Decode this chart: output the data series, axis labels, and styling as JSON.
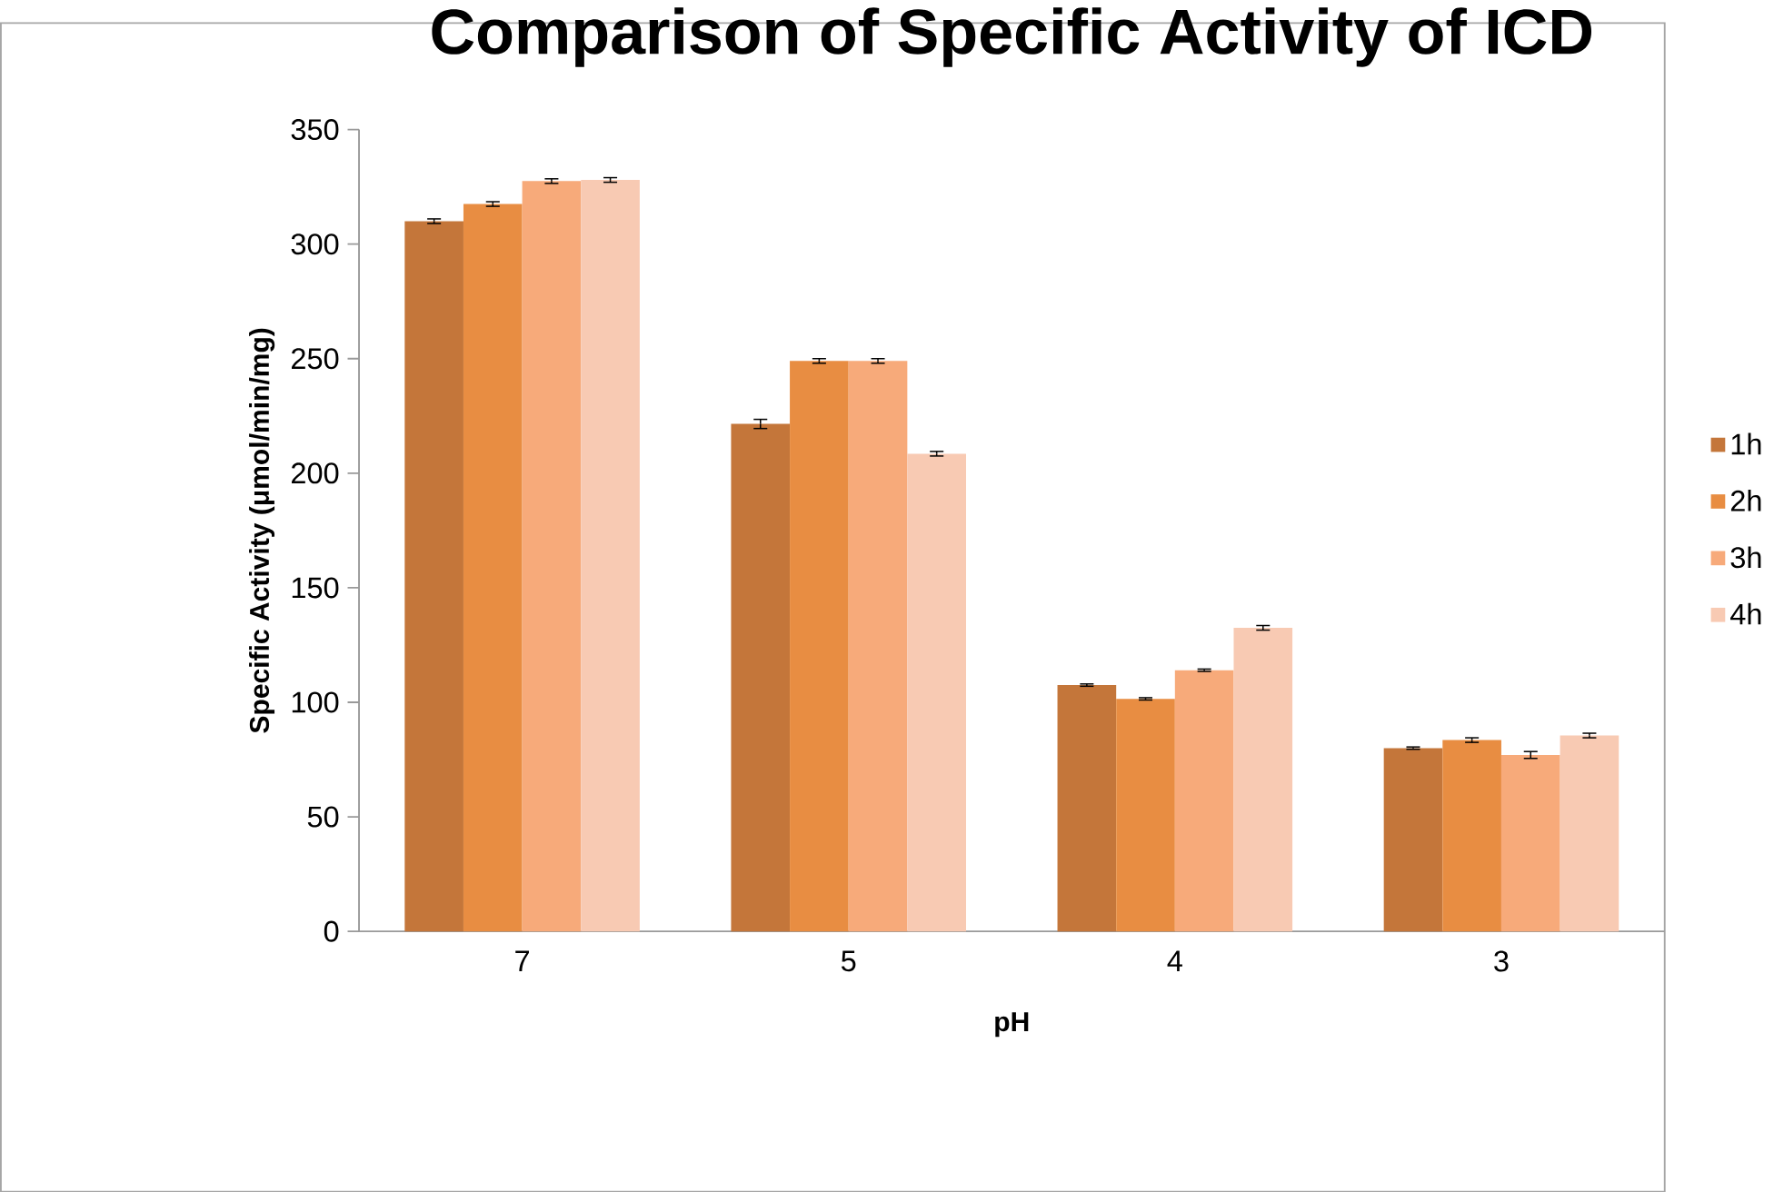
{
  "chart_data": {
    "type": "bar",
    "title": "Comparison of Specific Activity of ICD",
    "xlabel": "pH",
    "ylabel": "Specific Activity (μmol/min/mg)",
    "categories": [
      "7",
      "5",
      "4",
      "3"
    ],
    "series": [
      {
        "name": "1h",
        "color": "#c4763a",
        "values": [
          310,
          221.5,
          107.5,
          80
        ],
        "errors": [
          1,
          2,
          0.5,
          0.5
        ]
      },
      {
        "name": "2h",
        "color": "#e88d42",
        "values": [
          317.5,
          249,
          101.5,
          83.5
        ],
        "errors": [
          1,
          1,
          0.5,
          1
        ]
      },
      {
        "name": "3h",
        "color": "#f7aa7a",
        "values": [
          327.5,
          249,
          114,
          77
        ],
        "errors": [
          1,
          1,
          0.5,
          1.5
        ]
      },
      {
        "name": "4h",
        "color": "#f8cab3",
        "values": [
          328,
          208.5,
          132.5,
          85.5
        ],
        "errors": [
          1,
          1,
          1,
          1
        ]
      }
    ],
    "ylim": [
      0,
      350
    ],
    "yticks": [
      0,
      50,
      100,
      150,
      200,
      250,
      300,
      350
    ],
    "grid": false,
    "legend": "right"
  }
}
